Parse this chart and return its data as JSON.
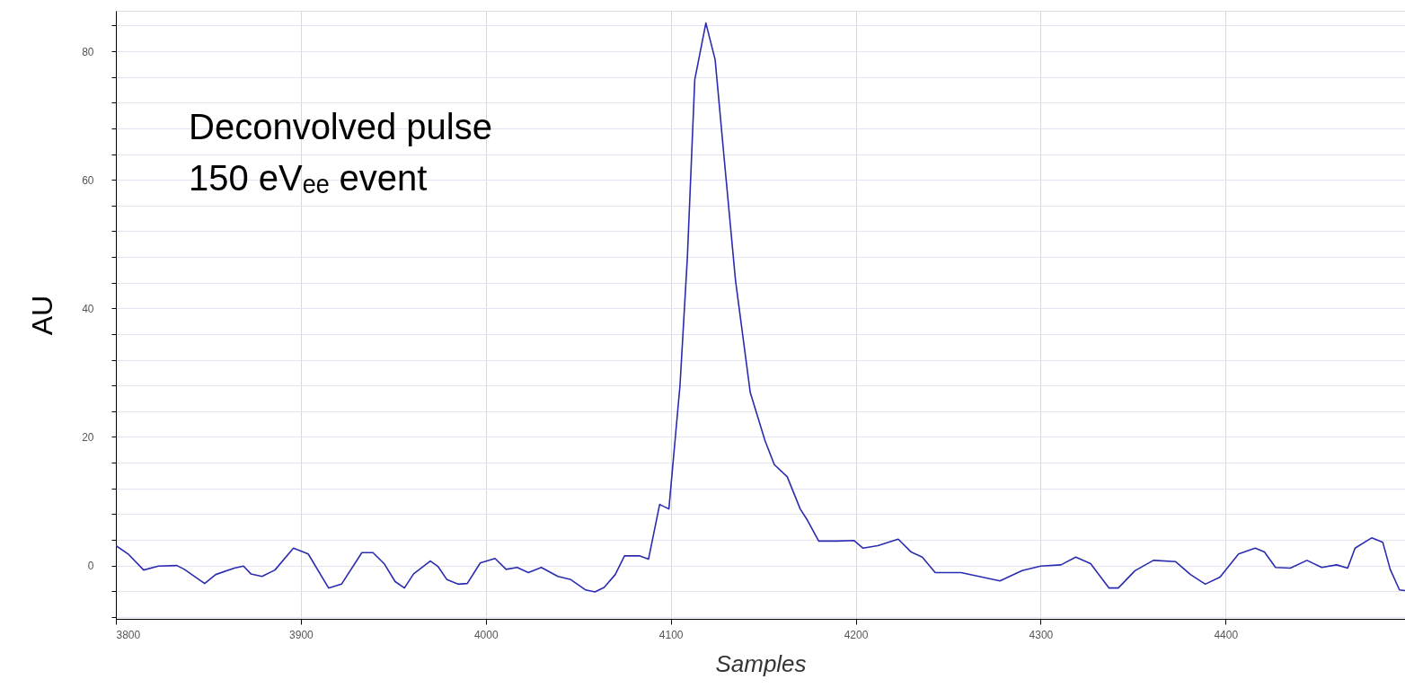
{
  "chart_data": {
    "type": "line",
    "xlabel": "Samples",
    "ylabel": "AU",
    "annotations": [
      "Deconvolved pulse",
      "150 eVₑₑ event"
    ],
    "xlim": [
      3800,
      4497
    ],
    "xticks": [
      3800,
      3900,
      4000,
      4100,
      4200,
      4300,
      4400
    ],
    "ylim": [
      -8.3,
      86.3
    ],
    "yticks": [
      {
        "value": -8,
        "label": null
      },
      {
        "value": -4,
        "label": null
      },
      0,
      {
        "value": 4,
        "label": null
      },
      {
        "value": 8,
        "label": null
      },
      {
        "value": 12,
        "label": null
      },
      {
        "value": 16,
        "label": null
      },
      20,
      {
        "value": 24,
        "label": null
      },
      {
        "value": 28,
        "label": null
      },
      {
        "value": 32,
        "label": null
      },
      {
        "value": 36,
        "label": null
      },
      40,
      {
        "value": 44,
        "label": null
      },
      {
        "value": 48,
        "label": null
      },
      {
        "value": 52,
        "label": null
      },
      {
        "value": 56,
        "label": null
      },
      60,
      {
        "value": 64,
        "label": null
      },
      {
        "value": 68,
        "label": null
      },
      {
        "value": 72,
        "label": null
      },
      {
        "value": 76,
        "label": null
      },
      80,
      {
        "value": 84,
        "label": null
      }
    ],
    "grid": true,
    "marker": "none",
    "line_style": "solid",
    "series": [
      {
        "color": "#2b2bb0",
        "x": [
          3800,
          3807,
          3815,
          3823,
          3833,
          3837,
          3848,
          3854,
          3864,
          3869,
          3873,
          3879,
          3886,
          3896,
          3904,
          3915,
          3922,
          3933,
          3939,
          3945,
          3951,
          3956,
          3961,
          3970,
          3974,
          3979,
          3985,
          3990,
          3997,
          4005,
          4011,
          4017,
          4023,
          4030,
          4039,
          4046,
          4054,
          4059,
          4064,
          4070,
          4075,
          4083,
          4088,
          4094,
          4099,
          4105,
          4109,
          4113,
          4119,
          4124,
          4129,
          4135,
          4143,
          4151,
          4156,
          4163,
          4170,
          4174,
          4180,
          4190,
          4199,
          4204,
          4212,
          4223,
          4230,
          4236,
          4243,
          4257,
          4278,
          4290,
          4300,
          4311,
          4319,
          4327,
          4337,
          4342,
          4351,
          4361,
          4373,
          4381,
          4389,
          4397,
          4407,
          4416,
          4421,
          4427,
          4435,
          4444,
          4452,
          4460,
          4466,
          4470,
          4479,
          4485,
          4489,
          4494,
          4497
        ],
        "values": [
          3.1,
          1.7,
          -0.7,
          -0.1,
          0,
          -0.6,
          -2.8,
          -1.4,
          -0.4,
          -0.1,
          -1.3,
          -1.7,
          -0.7,
          2.7,
          1.8,
          -3.5,
          -2.9,
          2.0,
          2.0,
          0.3,
          -2.5,
          -3.5,
          -1.3,
          0.7,
          -0.1,
          -2.2,
          -2.9,
          -2.8,
          0.4,
          1.1,
          -0.6,
          -0.3,
          -1.1,
          -0.3,
          -1.7,
          -2.2,
          -3.8,
          -4.1,
          -3.4,
          -1.4,
          1.5,
          1.5,
          1.0,
          9.5,
          8.8,
          28,
          48,
          75.6,
          84.4,
          78.7,
          63,
          44.4,
          26.9,
          19.4,
          15.7,
          13.8,
          8.8,
          7,
          3.8,
          3.8,
          3.9,
          2.7,
          3.1,
          4.1,
          2.1,
          1.3,
          -1.1,
          -1.1,
          -2.4,
          -0.8,
          -0.1,
          0.1,
          1.3,
          0.3,
          -3.5,
          -3.5,
          -0.8,
          0.8,
          0.6,
          -1.4,
          -2.9,
          -1.8,
          1.8,
          2.7,
          2.1,
          -0.3,
          -0.4,
          0.8,
          -0.3,
          0.1,
          -0.4,
          2.7,
          4.3,
          3.6,
          -0.6,
          -3.8,
          -3.9
        ]
      }
    ]
  }
}
